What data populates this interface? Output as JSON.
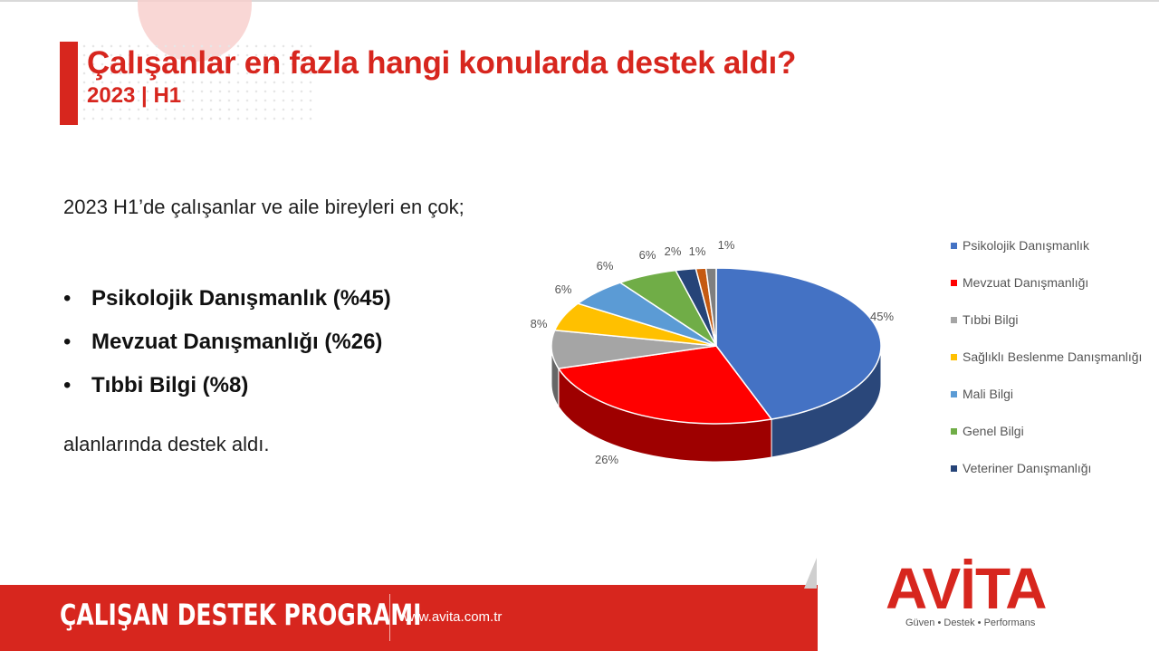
{
  "header": {
    "title": "Çalışanlar en fazla hangi konularda destek aldı?",
    "subtitle": "2023 | H1"
  },
  "content": {
    "intro": "2023 H1’de çalışanlar ve aile bireyleri en çok;",
    "bullets": [
      "Psikolojik Danışmanlık (%45)",
      "Mevzuat Danışmanlığı (%26)",
      "Tıbbi Bilgi (%8)"
    ],
    "closing": "alanlarında destek aldı."
  },
  "chart_data": {
    "type": "pie",
    "style": "3d",
    "legend_position": "right",
    "categories": [
      "Psikolojik Danışmanlık",
      "Mevzuat Danışmanlığı",
      "Tıbbi Bilgi",
      "Sağlıklı Beslenme Danışmanlığı",
      "Mali Bilgi",
      "Genel Bilgi",
      "Veteriner Danışmanlığı",
      "",
      ""
    ],
    "values": [
      45,
      26,
      8,
      6,
      6,
      6,
      2,
      1,
      1
    ],
    "data_labels": [
      "45%",
      "26%",
      "8%",
      "6%",
      "6%",
      "6%",
      "2%",
      "1%",
      "1%"
    ],
    "colors": [
      "#4472c4",
      "#ff0000",
      "#a5a5a5",
      "#ffc000",
      "#5b9bd5",
      "#70ad47",
      "#264478",
      "#c55a11",
      "#7f7f7f"
    ]
  },
  "footer": {
    "program": "ÇALIŞAN DESTEK PROGRAMI",
    "url": "www.avita.com.tr",
    "logo_text": "AVİTA",
    "tagline": "Güven • Destek • Performans"
  },
  "colors": {
    "brand_red": "#d7261e"
  }
}
